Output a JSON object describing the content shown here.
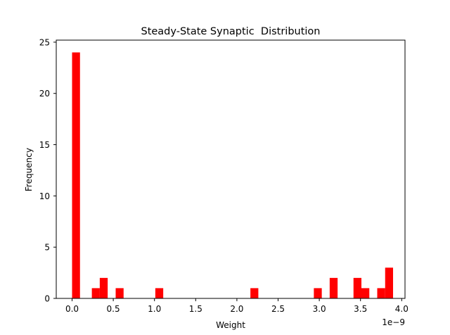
{
  "chart_data": {
    "type": "bar",
    "title": "Steady-State Synaptic  Distribution",
    "xlabel": "Weight",
    "ylabel": "Frequency",
    "x_offset_text": "1e−9",
    "x_unit_multiplier": 1e-09,
    "bar_color": "#ff0000",
    "bin_width": 0.0962,
    "xlim": [
      -0.192,
      4.04
    ],
    "ylim": [
      0,
      25.2
    ],
    "xticks": [
      0.0,
      0.5,
      1.0,
      1.5,
      2.0,
      2.5,
      3.0,
      3.5,
      4.0
    ],
    "xtick_labels": [
      "0.0",
      "0.5",
      "1.0",
      "1.5",
      "2.0",
      "2.5",
      "3.0",
      "3.5",
      "4.0"
    ],
    "yticks": [
      0,
      5,
      10,
      15,
      20,
      25
    ],
    "ytick_labels": [
      "0",
      "5",
      "10",
      "15",
      "20",
      "25"
    ],
    "bins": [
      {
        "x": 0.0,
        "count": 24
      },
      {
        "x": 0.24,
        "count": 1
      },
      {
        "x": 0.336,
        "count": 2
      },
      {
        "x": 0.529,
        "count": 1
      },
      {
        "x": 1.01,
        "count": 1
      },
      {
        "x": 2.164,
        "count": 1
      },
      {
        "x": 2.934,
        "count": 1
      },
      {
        "x": 3.126,
        "count": 2
      },
      {
        "x": 3.415,
        "count": 2
      },
      {
        "x": 3.511,
        "count": 1
      },
      {
        "x": 3.703,
        "count": 1
      },
      {
        "x": 3.799,
        "count": 3
      }
    ],
    "grid": false,
    "legend": "none"
  }
}
